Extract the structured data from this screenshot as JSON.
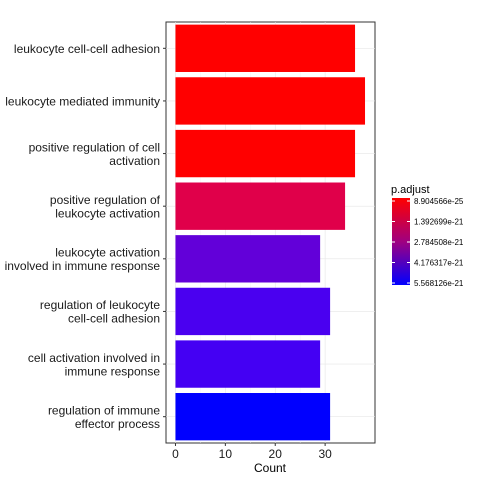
{
  "chart_data": {
    "type": "bar",
    "orientation": "horizontal",
    "categories": [
      [
        "leukocyte cell-cell adhesion"
      ],
      [
        "leukocyte mediated immunity"
      ],
      [
        "positive regulation of cell",
        "activation"
      ],
      [
        "positive regulation of",
        "leukocyte activation"
      ],
      [
        "leukocyte activation",
        "involved in immune response"
      ],
      [
        "regulation of leukocyte",
        "cell-cell adhesion"
      ],
      [
        "cell activation involved in",
        "immune response"
      ],
      [
        "regulation of immune",
        "effector process"
      ]
    ],
    "values": [
      36,
      38,
      36,
      34,
      29,
      31,
      29,
      31
    ],
    "colors": [
      "#FF0000",
      "#FF0000",
      "#FF0000",
      "#E0004A",
      "#6200D9",
      "#4A00F0",
      "#4400F3",
      "#0000FF"
    ],
    "xlabel": "Count",
    "ylabel": "",
    "xlim": [
      -1.9,
      40
    ],
    "xticks": [
      0,
      10,
      20,
      30
    ],
    "grid": true,
    "legend": {
      "title": "p.adjust",
      "position": "right",
      "gradient": [
        "#FF0000",
        "#0000FF"
      ],
      "labels": [
        "8.904566e-25",
        "1.392699e-21",
        "2.784508e-21",
        "4.176317e-21",
        "5.568126e-21"
      ]
    }
  }
}
